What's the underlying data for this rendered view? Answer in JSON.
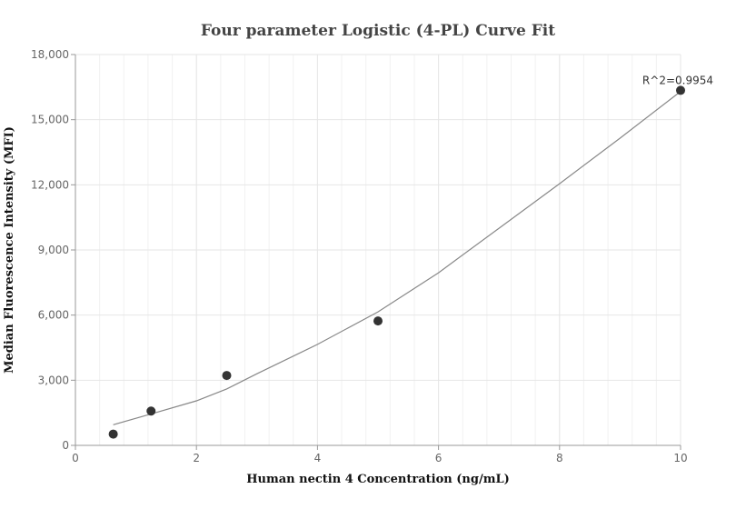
{
  "chart_data": {
    "type": "scatter",
    "title": "Four parameter Logistic (4-PL) Curve Fit",
    "xlabel": "Human nectin 4 Concentration (ng/mL)",
    "ylabel": "Median Fluorescence Intensity (MFI)",
    "xlim": [
      0,
      10
    ],
    "ylim": [
      0,
      18000
    ],
    "x_ticks": [
      0,
      2,
      4,
      6,
      8,
      10
    ],
    "x_tick_labels": [
      "0",
      "2",
      "4",
      "6",
      "8",
      "10"
    ],
    "y_ticks": [
      0,
      3000,
      6000,
      9000,
      12000,
      15000,
      18000
    ],
    "y_tick_labels": [
      "0",
      "3,000",
      "6,000",
      "9,000",
      "12,000",
      "15,000",
      "18,000"
    ],
    "grid": true,
    "points": {
      "x": [
        0.625,
        1.25,
        2.5,
        5,
        10
      ],
      "y": [
        520,
        1580,
        3220,
        5730,
        16350
      ]
    },
    "fit_curve": {
      "x": [
        0.625,
        1.25,
        2,
        2.5,
        3,
        4,
        5,
        6,
        7,
        8,
        9,
        10
      ],
      "y": [
        950,
        1450,
        2050,
        2600,
        3300,
        4650,
        6150,
        7950,
        10000,
        12050,
        14150,
        16300
      ]
    },
    "annotation": "R^2=0.9954",
    "colors": {
      "points": "#333333",
      "curve": "#888888",
      "grid": "#e6e6e6",
      "axis": "#999999"
    }
  }
}
